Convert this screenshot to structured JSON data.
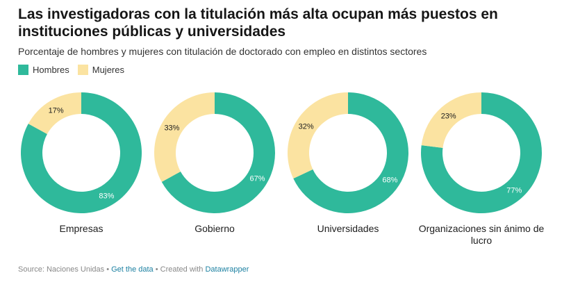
{
  "header": {
    "title": "Las investigadoras con la titulación más alta ocupan más puestos en instituciones públicas y universidades",
    "subtitle": "Porcentaje de hombres y mujeres con titulación de doctorado con empleo en distintos sectores"
  },
  "legend": {
    "items": [
      {
        "label": "Hombres",
        "color": "#2fb99b"
      },
      {
        "label": "Mujeres",
        "color": "#fbe3a1"
      }
    ]
  },
  "chart_data": {
    "type": "pie",
    "variant": "donut",
    "series_names": [
      "Hombres",
      "Mujeres"
    ],
    "colors": {
      "Hombres": "#2fb99b",
      "Mujeres": "#fbe3a1"
    },
    "charts": [
      {
        "category": "Empresas",
        "values": {
          "Hombres": 83,
          "Mujeres": 17
        },
        "labels": {
          "Hombres": "83%",
          "Mujeres": "17%"
        }
      },
      {
        "category": "Gobierno",
        "values": {
          "Hombres": 67,
          "Mujeres": 33
        },
        "labels": {
          "Hombres": "67%",
          "Mujeres": "33%"
        }
      },
      {
        "category": "Universidades",
        "values": {
          "Hombres": 68,
          "Mujeres": 32
        },
        "labels": {
          "Hombres": "68%",
          "Mujeres": "32%"
        }
      },
      {
        "category": "Organizaciones sin ánimo de lucro",
        "values": {
          "Hombres": 77,
          "Mujeres": 23
        },
        "labels": {
          "Hombres": "77%",
          "Mujeres": "23%"
        }
      }
    ]
  },
  "footer": {
    "source": "Source: Naciones Unidas",
    "separator": "•",
    "get_data": "Get the data",
    "created_with": "Created with",
    "tool": "Datawrapper"
  }
}
